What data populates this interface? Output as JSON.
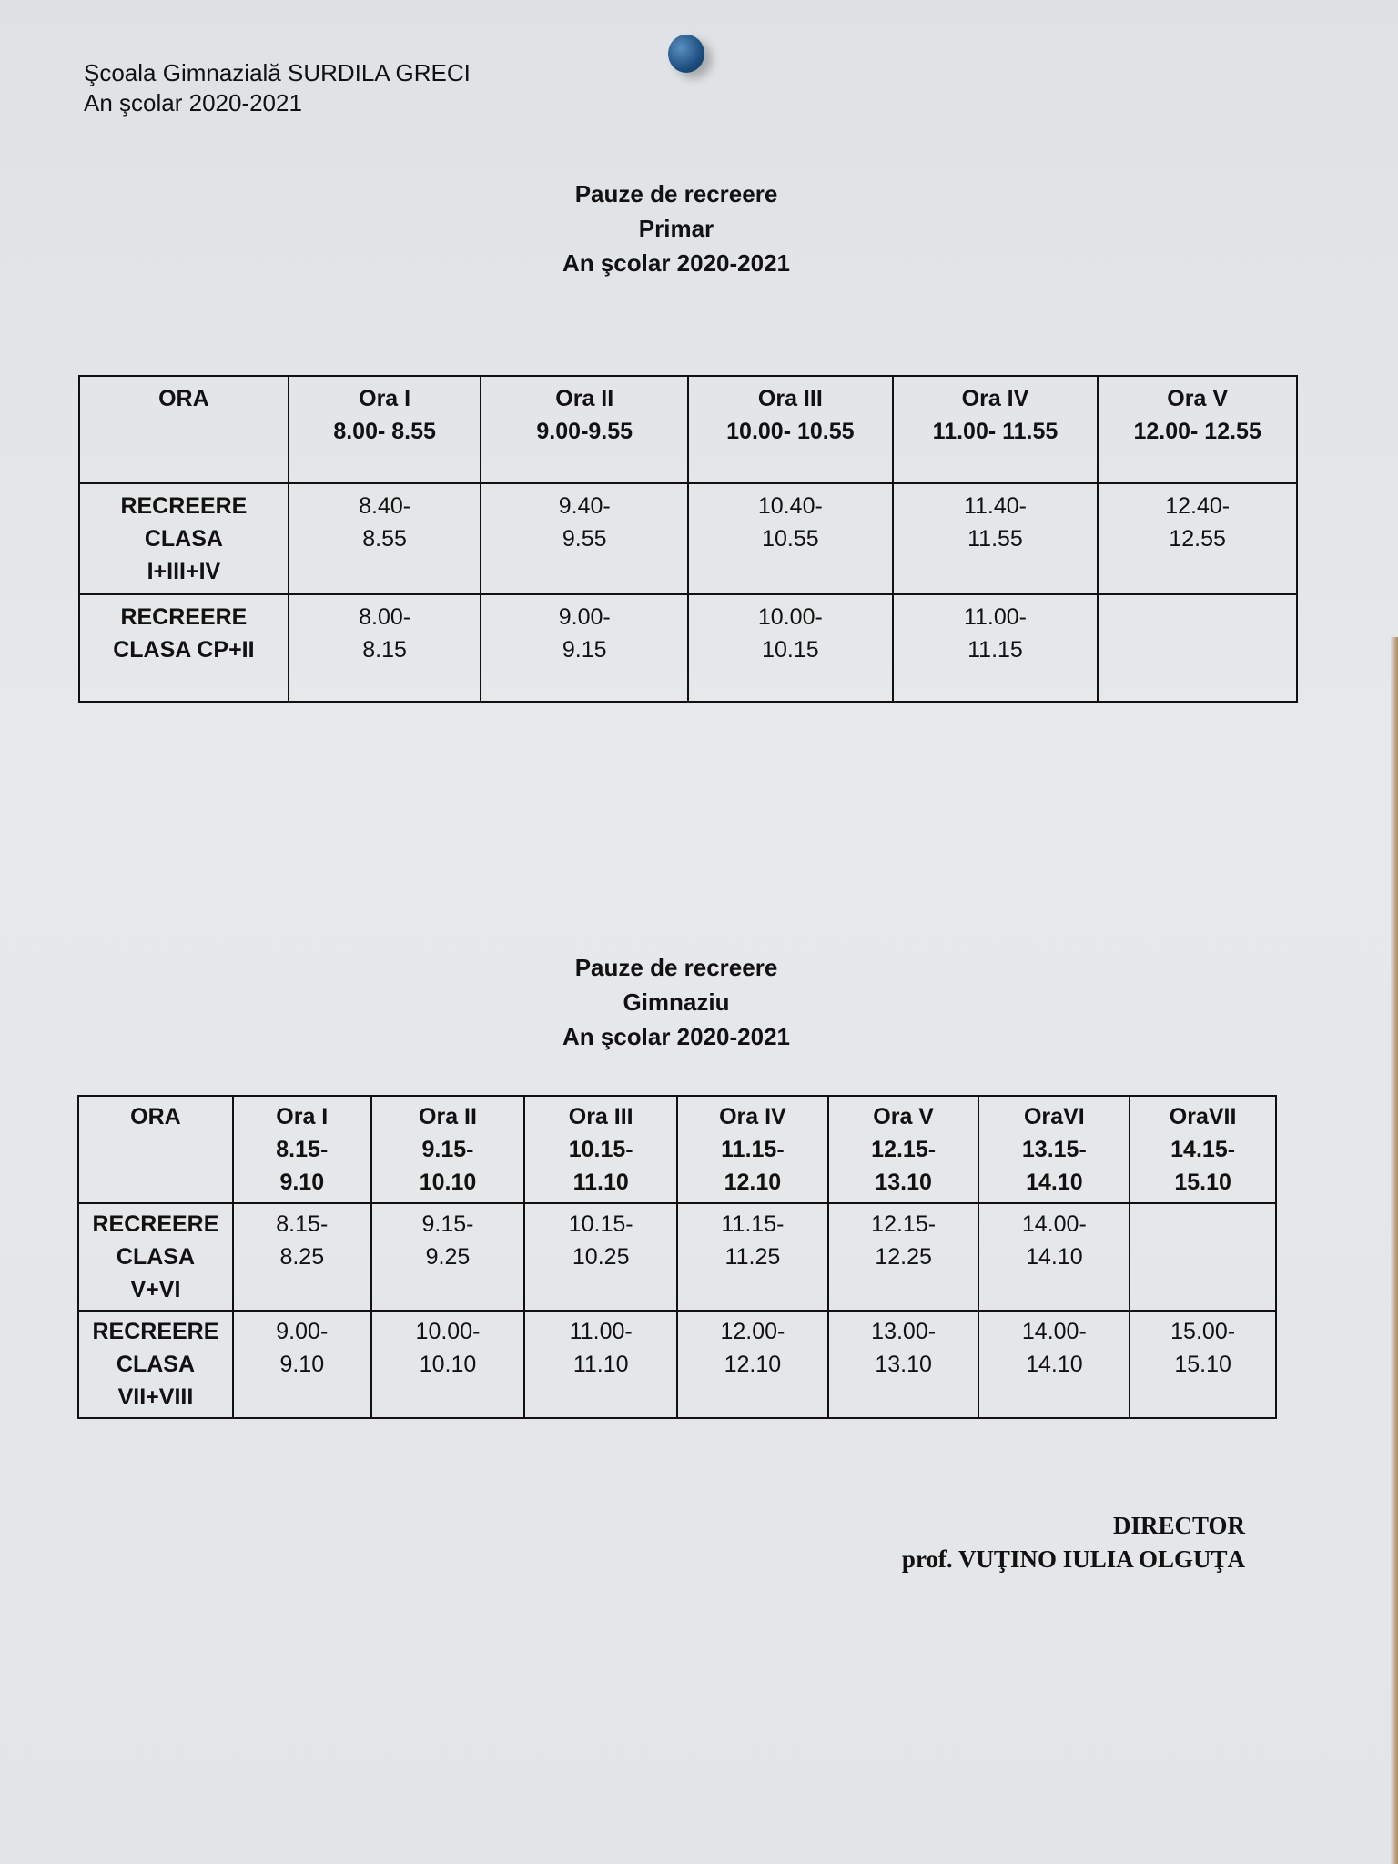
{
  "header": {
    "school": "Şcoala Gimnazială SURDILA GRECI",
    "year": "An şcolar 2020-2021"
  },
  "primar": {
    "title": [
      "Pauze de recreere",
      "Primar",
      "An şcolar 2020-2021"
    ],
    "columns": [
      [
        "ORA"
      ],
      [
        "Ora I",
        "8.00- 8.55"
      ],
      [
        "Ora II",
        "9.00-9.55"
      ],
      [
        "Ora III",
        "10.00- 10.55"
      ],
      [
        "Ora IV",
        "11.00- 11.55"
      ],
      [
        "Ora V",
        "12.00- 12.55"
      ]
    ],
    "rows": [
      {
        "label": [
          "RECREERE",
          "CLASA",
          "I+III+IV"
        ],
        "cells": [
          [
            "8.40-",
            "8.55"
          ],
          [
            "9.40-",
            "9.55"
          ],
          [
            "10.40-",
            "10.55"
          ],
          [
            "11.40-",
            "11.55"
          ],
          [
            "12.40-",
            "12.55"
          ]
        ]
      },
      {
        "label": [
          "RECREERE",
          "CLASA CP+II"
        ],
        "cells": [
          [
            "8.00-",
            "8.15"
          ],
          [
            "9.00-",
            "9.15"
          ],
          [
            "10.00-",
            "10.15"
          ],
          [
            "11.00-",
            "11.15"
          ],
          []
        ]
      }
    ]
  },
  "gimnaziu": {
    "title": [
      "Pauze de recreere",
      "Gimnaziu",
      "An şcolar 2020-2021"
    ],
    "columns": [
      [
        "ORA"
      ],
      [
        "Ora I",
        "8.15-",
        "9.10"
      ],
      [
        "Ora II",
        "9.15-",
        "10.10"
      ],
      [
        "Ora III",
        "10.15-",
        "11.10"
      ],
      [
        "Ora IV",
        "11.15-",
        "12.10"
      ],
      [
        "Ora V",
        "12.15-",
        "13.10"
      ],
      [
        "OraVI",
        "13.15-",
        "14.10"
      ],
      [
        "OraVII",
        "14.15-",
        "15.10"
      ]
    ],
    "rows": [
      {
        "label": [
          "RECREERE",
          "CLASA",
          "V+VI"
        ],
        "cells": [
          [
            "8.15-",
            "8.25"
          ],
          [
            "9.15-",
            "9.25"
          ],
          [
            "10.15-",
            "10.25"
          ],
          [
            "11.15-",
            "11.25"
          ],
          [
            "12.15-",
            "12.25"
          ],
          [
            "14.00-",
            "14.10"
          ],
          []
        ]
      },
      {
        "label": [
          "RECREERE",
          "CLASA",
          "VII+VIII"
        ],
        "cells": [
          [
            "9.00-",
            "9.10"
          ],
          [
            "10.00-",
            "10.10"
          ],
          [
            "11.00-",
            "11.10"
          ],
          [
            "12.00-",
            "12.10"
          ],
          [
            "13.00-",
            "13.10"
          ],
          [
            "14.00-",
            "14.10"
          ],
          [
            "15.00-",
            "15.10"
          ]
        ]
      }
    ]
  },
  "signature": {
    "role": "DIRECTOR",
    "name": "prof. VUŢINO IULIA OLGUŢA"
  }
}
